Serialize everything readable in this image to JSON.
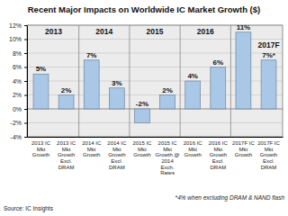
{
  "chart_data": {
    "type": "bar",
    "title": "Recent Major Impacts on Worldwide IC Market Growth ($)",
    "categories": [
      "2013 IC Mkt Growth",
      "2013 IC Mkt Growth Excl. DRAM",
      "2014 IC Mkt Growth",
      "2014 IC Mkt Growth Excl. DRAM",
      "2015 IC Mkt Growth",
      "2015 IC Mkt Growth @ 2014 Exch. Rates",
      "2016 IC Mkt Growth",
      "2016 IC Mkt Growth Excl. DRAM",
      "2017F IC Mkt Growth",
      "2017F IC Mkt Growth Excl. DRAM"
    ],
    "values": [
      5,
      2,
      7,
      3,
      -2,
      2,
      4,
      6,
      11,
      7
    ],
    "value_labels": [
      "5%",
      "2%",
      "7%",
      "3%",
      "-2%",
      "2%",
      "4%",
      "6%",
      "11%",
      "7%*"
    ],
    "color": "#a9c8e8",
    "data_labels": true,
    "grid": true,
    "ylim": [
      -4,
      12
    ],
    "yticks": [
      {
        "value": -4,
        "label": "-4%"
      },
      {
        "value": -2,
        "label": "-2%"
      },
      {
        "value": 0,
        "label": "0%"
      },
      {
        "value": 2,
        "label": "2%"
      },
      {
        "value": 4,
        "label": "4%"
      },
      {
        "value": 6,
        "label": "6%"
      },
      {
        "value": 8,
        "label": "8%"
      },
      {
        "value": 10,
        "label": "10%"
      },
      {
        "value": 12,
        "label": "12%"
      }
    ],
    "groups": [
      "2013",
      "2014",
      "2015",
      "2016",
      "2017F"
    ],
    "footnote": "*4% when excluding DRAM & NAND flash",
    "source": "Source: IC Insights"
  }
}
